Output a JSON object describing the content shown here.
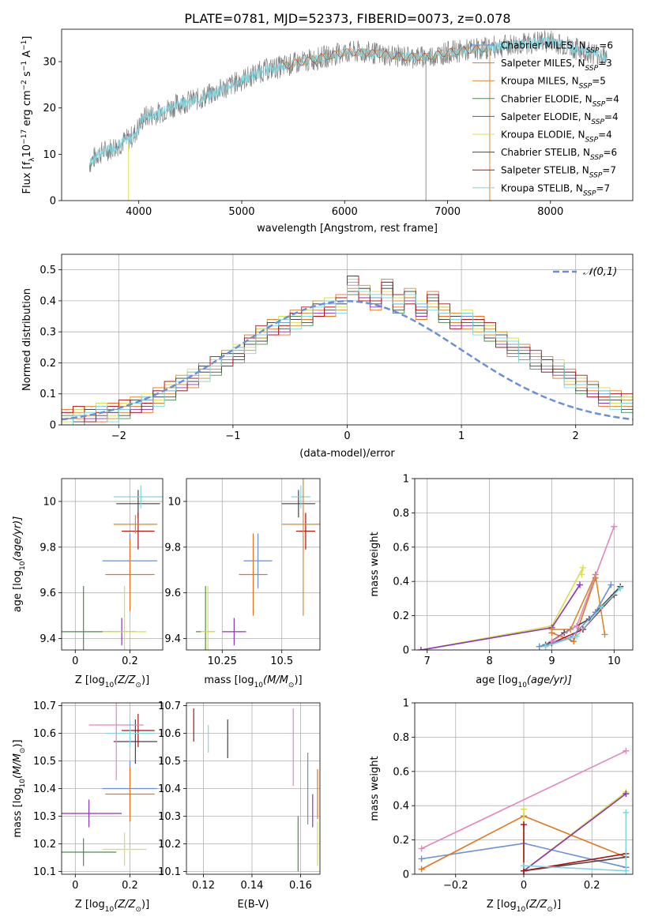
{
  "figure_title": "PLATE=0781, MJD=52373, FIBERID=0073, z=0.078",
  "models": [
    {
      "name": "Chabrier MILES",
      "nssp": "6",
      "color": "#6b8fd6"
    },
    {
      "name": "Salpeter MILES",
      "nssp": "3",
      "color": "#e0761f"
    },
    {
      "name": "Kroupa MILES",
      "nssp": "5",
      "color": "#d38a2a"
    },
    {
      "name": "Chabrier ELODIE",
      "nssp": "4",
      "color": "#4f8a4f"
    },
    {
      "name": "Salpeter ELODIE",
      "nssp": "4",
      "color": "#8a35b8"
    },
    {
      "name": "Kroupa ELODIE",
      "nssp": "4",
      "color": "#d8e04a"
    },
    {
      "name": "Chabrier STELIB",
      "nssp": "6",
      "color": "#444444"
    },
    {
      "name": "Salpeter STELIB",
      "nssp": "7",
      "color": "#b01010"
    },
    {
      "name": "Kroupa STELIB",
      "nssp": "7",
      "color": "#7fd6e0"
    }
  ],
  "chart_data": [
    {
      "id": "spectrum",
      "type": "line",
      "xlabel": "wavelength [Angstrom, rest frame]",
      "ylabel_main": "Flux [f",
      "ylabel_sub": "λ",
      "ylabel_rest": "10",
      "ylabel_sup": "−17",
      "ylabel_tail": " erg cm",
      "ylabel_sup2": "−2",
      "ylabel_tail2": " s",
      "ylabel_sup3": "−1",
      "ylabel_tail3": " A",
      "ylabel_sup4": "−1",
      "ylabel_end": "]",
      "xlim": [
        3250,
        8800
      ],
      "ylim": [
        0,
        37
      ],
      "xticks": [
        4000,
        5000,
        6000,
        7000,
        8000
      ],
      "yticks": [
        0,
        10,
        20,
        30
      ],
      "observed_color": "#808080",
      "model_color": "#7fd6e0",
      "continuum": [
        [
          3520,
          8
        ],
        [
          3600,
          10
        ],
        [
          3800,
          12
        ],
        [
          3950,
          14
        ],
        [
          4050,
          18
        ],
        [
          4200,
          19
        ],
        [
          4400,
          21
        ],
        [
          4600,
          22
        ],
        [
          4800,
          24
        ],
        [
          5000,
          26
        ],
        [
          5200,
          28
        ],
        [
          5400,
          29
        ],
        [
          5600,
          30
        ],
        [
          5800,
          31
        ],
        [
          6000,
          32
        ],
        [
          6200,
          32
        ],
        [
          6400,
          31.5
        ],
        [
          6600,
          31
        ],
        [
          6800,
          31
        ],
        [
          7000,
          32
        ],
        [
          7200,
          32.5
        ],
        [
          7400,
          33
        ],
        [
          7600,
          33.5
        ],
        [
          7800,
          34
        ],
        [
          8000,
          34.5
        ],
        [
          8200,
          33
        ],
        [
          8400,
          32
        ],
        [
          8550,
          31
        ]
      ],
      "legend_loc": "upper right"
    },
    {
      "id": "residuals",
      "type": "histogram",
      "xlabel": "(data-model)/error",
      "ylabel": "Normed distribution",
      "xlim": [
        -2.5,
        2.5
      ],
      "ylim": [
        0,
        0.55
      ],
      "xticks": [
        -2,
        -1,
        0,
        1,
        2
      ],
      "yticks": [
        0,
        0.1,
        0.2,
        0.3,
        0.4,
        0.5
      ],
      "legend_label": "𝒩(0,1)",
      "bin_width": 0.1,
      "bin_start": -2.5,
      "base_heights": [
        0.02,
        0.03,
        0.03,
        0.04,
        0.04,
        0.05,
        0.06,
        0.07,
        0.09,
        0.11,
        0.13,
        0.15,
        0.17,
        0.19,
        0.21,
        0.23,
        0.26,
        0.29,
        0.31,
        0.32,
        0.34,
        0.35,
        0.37,
        0.38,
        0.39,
        0.45,
        0.42,
        0.4,
        0.44,
        0.39,
        0.41,
        0.37,
        0.4,
        0.36,
        0.33,
        0.34,
        0.32,
        0.3,
        0.27,
        0.25,
        0.23,
        0.21,
        0.19,
        0.18,
        0.15,
        0.13,
        0.11,
        0.09,
        0.08,
        0.07,
        0.06,
        0.05,
        0.04,
        0.04,
        0.03,
        0.03,
        0.03,
        0.02,
        0.02,
        0.02,
        0.02,
        0.02,
        0.02,
        0.02,
        0.02,
        0.02,
        0.02,
        0.02,
        0.02,
        0.02,
        0.02,
        0.02,
        0.02,
        0.02,
        0.02,
        0.02,
        0.02,
        0.02,
        0.02,
        0.02,
        0.02,
        0.02,
        0.02,
        0.02,
        0.02,
        0.02,
        0.02,
        0.02,
        0.02,
        0.02,
        0.02,
        0.02,
        0.02,
        0.02,
        0.02,
        0.02,
        0.02,
        0.02,
        0.02,
        0.02,
        0.02
      ]
    },
    {
      "id": "age_vs_Z",
      "type": "errorbar",
      "xlabel_main": "Z [log",
      "xlabel_sub": "10",
      "xlabel_rest": "(Z/Z",
      "xlabel_sub2": "⊙",
      "xlabel_end": ")]",
      "ylabel_main": "age  [log",
      "ylabel_sub": "10",
      "ylabel_rest": "(age/yr)]",
      "xlim": [
        -0.05,
        0.32
      ],
      "ylim": [
        9.35,
        10.1
      ],
      "xticks": [
        0.0,
        0.2
      ],
      "yticks": [
        9.4,
        9.6,
        9.8,
        10.0
      ],
      "points": [
        {
          "model": 0,
          "x": 0.2,
          "y": 9.74,
          "xerr": 0.1,
          "yerr": 0.12
        },
        {
          "model": 1,
          "x": 0.2,
          "y": 9.68,
          "xerr": 0.09,
          "yerr": 0.16
        },
        {
          "model": 3,
          "x": 0.03,
          "y": 9.43,
          "xerr": 0.1,
          "yerr": 0.2
        },
        {
          "model": 4,
          "x": 0.17,
          "y": 9.43,
          "xerr": 0.05,
          "yerr": 0.06
        },
        {
          "model": 5,
          "x": 0.18,
          "y": 9.43,
          "xerr": 0.08,
          "yerr": 0.2
        },
        {
          "model": 6,
          "x": 0.23,
          "y": 9.99,
          "xerr": 0.08,
          "yerr": 0.06
        },
        {
          "model": 7,
          "x": 0.23,
          "y": 9.87,
          "xerr": 0.06,
          "yerr": 0.08
        },
        {
          "model": 8,
          "x": 0.24,
          "y": 10.02,
          "xerr": 0.1,
          "yerr": 0.05
        },
        {
          "model": 2,
          "x": 0.22,
          "y": 9.9,
          "xerr": 0.08,
          "yerr": 0.04
        }
      ]
    },
    {
      "id": "age_vs_mass",
      "type": "errorbar",
      "xlabel_main": "mass [log",
      "xlabel_sub": "10",
      "xlabel_rest": "(M/M",
      "xlabel_sub2": "⊙",
      "xlabel_end": ")]",
      "xlim": [
        10.1,
        10.66
      ],
      "ylim": [
        9.35,
        10.1
      ],
      "xticks": [
        10.25,
        10.5
      ],
      "yticks": [
        9.4,
        9.6,
        9.8,
        10.0
      ],
      "points": [
        {
          "model": 0,
          "x": 10.4,
          "y": 9.74,
          "xerr": 0.06,
          "yerr": 0.12
        },
        {
          "model": 1,
          "x": 10.38,
          "y": 9.68,
          "xerr": 0.06,
          "yerr": 0.18
        },
        {
          "model": 3,
          "x": 10.18,
          "y": 9.43,
          "xerr": 0.04,
          "yerr": 0.2
        },
        {
          "model": 4,
          "x": 10.3,
          "y": 9.43,
          "xerr": 0.05,
          "yerr": 0.06
        },
        {
          "model": 5,
          "x": 10.19,
          "y": 9.43,
          "xerr": 0.03,
          "yerr": 0.2
        },
        {
          "model": 6,
          "x": 10.57,
          "y": 9.99,
          "xerr": 0.07,
          "yerr": 0.06
        },
        {
          "model": 7,
          "x": 10.6,
          "y": 9.87,
          "xerr": 0.04,
          "yerr": 0.08
        },
        {
          "model": 8,
          "x": 10.58,
          "y": 10.02,
          "xerr": 0.04,
          "yerr": 0.05
        },
        {
          "model": 2,
          "x": 10.59,
          "y": 9.9,
          "xerr": 0.09,
          "yerr": 0.4
        }
      ]
    },
    {
      "id": "weight_vs_age",
      "type": "line",
      "xlabel_main": "age  [log",
      "xlabel_sub": "10",
      "xlabel_rest": "(age/yr)]",
      "ylabel": "mass weight",
      "xlim": [
        6.8,
        10.3
      ],
      "ylim": [
        0,
        1.0
      ],
      "xticks": [
        7,
        8,
        9,
        10
      ],
      "yticks": [
        0.0,
        0.2,
        0.4,
        0.6,
        0.8,
        1.0
      ],
      "series": [
        {
          "model": 5,
          "x": [
            6.9,
            9.0,
            9.5,
            9.48
          ],
          "y": [
            0.0,
            0.14,
            0.48,
            0.44
          ]
        },
        {
          "model": 4,
          "x": [
            6.9,
            9.0,
            9.45
          ],
          "y": [
            0.0,
            0.13,
            0.38
          ]
        },
        {
          "model": 2,
          "x": [
            9.0,
            9.3,
            9.7,
            9.85
          ],
          "y": [
            0.12,
            0.12,
            0.44,
            0.09
          ]
        },
        {
          "model": 1,
          "x": [
            9.0,
            9.35,
            9.7
          ],
          "y": [
            0.1,
            0.05,
            0.42
          ]
        },
        {
          "model": 7,
          "x": [
            9.0,
            9.5,
            10.0
          ],
          "y": [
            0.04,
            0.12,
            0.32
          ]
        },
        {
          "model": 6,
          "x": [
            8.9,
            9.2,
            9.6,
            10.1
          ],
          "y": [
            0.03,
            0.1,
            0.18,
            0.37
          ]
        },
        {
          "model": 0,
          "x": [
            8.8,
            9.3,
            9.7,
            9.95
          ],
          "y": [
            0.02,
            0.07,
            0.22,
            0.38
          ]
        },
        {
          "model": 8,
          "x": [
            8.9,
            9.4,
            9.8,
            10.1
          ],
          "y": [
            0.02,
            0.08,
            0.25,
            0.36
          ]
        },
        {
          "model": 9,
          "x": [
            9.0,
            9.4,
            10.0
          ],
          "y": [
            0.05,
            0.14,
            0.72
          ]
        }
      ]
    },
    {
      "id": "mass_vs_Z",
      "type": "errorbar",
      "xlabel_main": "Z [log",
      "xlabel_sub": "10",
      "xlabel_rest": "(Z/Z",
      "xlabel_sub2": "⊙",
      "xlabel_end": ")]",
      "ylabel_main": "mass [log",
      "ylabel_sub": "10",
      "ylabel_rest": "(M/M",
      "ylabel_sub2": "⊙",
      "ylabel_end": ")]",
      "xlim": [
        -0.05,
        0.32
      ],
      "ylim": [
        10.09,
        10.71
      ],
      "xticks": [
        0.0,
        0.2
      ],
      "yticks": [
        10.1,
        10.2,
        10.3,
        10.4,
        10.5,
        10.6,
        10.7
      ],
      "points": [
        {
          "model": 0,
          "x": 0.2,
          "y": 10.4,
          "xerr": 0.1,
          "yerr": 0.1
        },
        {
          "model": 1,
          "x": 0.2,
          "y": 10.38,
          "xerr": 0.09,
          "yerr": 0.1
        },
        {
          "model": 3,
          "x": 0.03,
          "y": 10.17,
          "xerr": 0.12,
          "yerr": 0.05
        },
        {
          "model": 4,
          "x": 0.05,
          "y": 10.31,
          "xerr": 0.12,
          "yerr": 0.05
        },
        {
          "model": 5,
          "x": 0.18,
          "y": 10.18,
          "xerr": 0.08,
          "yerr": 0.06
        },
        {
          "model": 6,
          "x": 0.22,
          "y": 10.57,
          "xerr": 0.08,
          "yerr": 0.08
        },
        {
          "model": 7,
          "x": 0.23,
          "y": 10.61,
          "xerr": 0.06,
          "yerr": 0.06
        },
        {
          "model": 8,
          "x": 0.2,
          "y": 10.6,
          "xerr": 0.09,
          "yerr": 0.05
        },
        {
          "model": 9,
          "x": 0.15,
          "y": 10.63,
          "xerr": 0.1,
          "yerr": 0.2
        }
      ]
    },
    {
      "id": "mass_vs_EBV",
      "type": "errorbar",
      "xlabel": "E(B-V)",
      "xlim": [
        0.113,
        0.168
      ],
      "ylim": [
        10.09,
        10.71
      ],
      "xticks": [
        0.12,
        0.14,
        0.16
      ],
      "yticks": [
        10.1,
        10.2,
        10.3,
        10.4,
        10.5,
        10.6,
        10.7
      ],
      "points": [
        {
          "model": 7,
          "x": 0.116,
          "y": 10.63,
          "xerr": 0.0,
          "yerr": 0.06
        },
        {
          "model": 8,
          "x": 0.122,
          "y": 10.58,
          "xerr": 0.0,
          "yerr": 0.05
        },
        {
          "model": 6,
          "x": 0.13,
          "y": 10.58,
          "xerr": 0.0,
          "yerr": 0.07
        },
        {
          "model": 9,
          "x": 0.157,
          "y": 10.55,
          "xerr": 0.0,
          "yerr": 0.14
        },
        {
          "model": 3,
          "x": 0.159,
          "y": 10.2,
          "xerr": 0.0,
          "yerr": 0.1
        },
        {
          "model": 0,
          "x": 0.163,
          "y": 10.4,
          "xerr": 0.0,
          "yerr": 0.13
        },
        {
          "model": 4,
          "x": 0.165,
          "y": 10.32,
          "xerr": 0.0,
          "yerr": 0.06
        },
        {
          "model": 1,
          "x": 0.167,
          "y": 10.38,
          "xerr": 0.0,
          "yerr": 0.09
        },
        {
          "model": 5,
          "x": 0.167,
          "y": 10.2,
          "xerr": 0.0,
          "yerr": 0.08
        }
      ]
    },
    {
      "id": "weight_vs_Z",
      "type": "line",
      "xlabel_main": "Z [log",
      "xlabel_sub": "10",
      "xlabel_rest": "(Z/Z",
      "xlabel_sub2": "⊙",
      "xlabel_end": ")]",
      "ylabel": "mass weight",
      "xlim": [
        -0.32,
        0.32
      ],
      "ylim": [
        0,
        1.0
      ],
      "xticks": [
        -0.2,
        0.0,
        0.2
      ],
      "yticks": [
        0.0,
        0.2,
        0.4,
        0.6,
        0.8,
        1.0
      ],
      "series": [
        {
          "model": 9,
          "x": [
            -0.3,
            0.3
          ],
          "y": [
            0.15,
            0.72
          ]
        },
        {
          "model": 0,
          "x": [
            -0.3,
            0.0,
            0.3
          ],
          "y": [
            0.09,
            0.18,
            0.04
          ]
        },
        {
          "model": 1,
          "x": [
            -0.3,
            0.0,
            0.3
          ],
          "y": [
            0.03,
            0.34,
            0.1
          ]
        },
        {
          "model": 5,
          "x": [
            0.0,
            0.0,
            0.3
          ],
          "y": [
            0.38,
            0.02,
            0.48
          ]
        },
        {
          "model": 4,
          "x": [
            0.0,
            0.3
          ],
          "y": [
            0.02,
            0.47
          ]
        },
        {
          "model": 6,
          "x": [
            0.0,
            0.3
          ],
          "y": [
            0.02,
            0.1
          ]
        },
        {
          "model": 7,
          "x": [
            0.0,
            0.0,
            0.3
          ],
          "y": [
            0.29,
            0.02,
            0.12
          ]
        },
        {
          "model": 8,
          "x": [
            0.0,
            0.3,
            0.3
          ],
          "y": [
            0.05,
            0.02,
            0.36
          ]
        }
      ]
    }
  ],
  "extra_colors": {
    "pink": "#e087c0",
    "normal_curve": "#6b8fd6"
  }
}
